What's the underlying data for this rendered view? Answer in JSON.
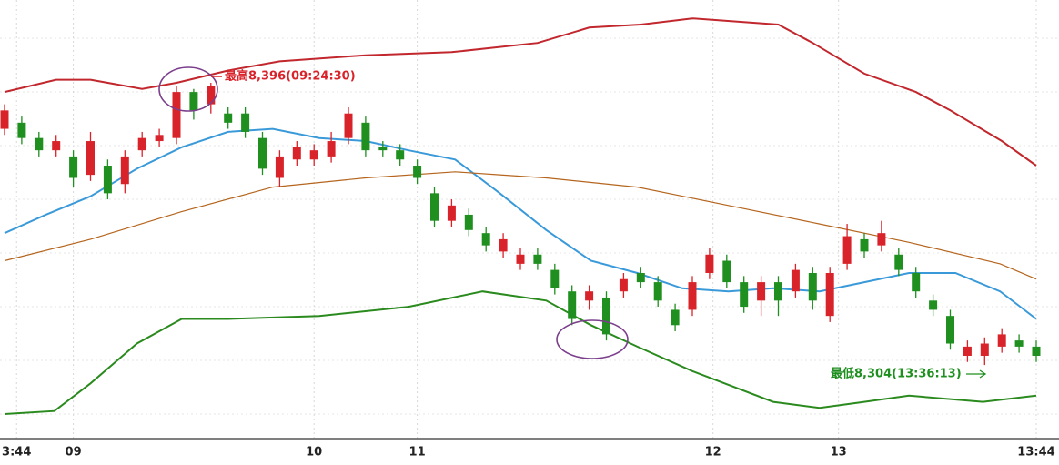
{
  "chart_data": {
    "type": "candlestick",
    "xlim": [
      0,
      60
    ],
    "ylim": [
      8280,
      8423
    ],
    "xticks": [
      {
        "value": 0.7,
        "label": "3:44"
      },
      {
        "value": 4,
        "label": "09"
      },
      {
        "value": 18,
        "label": "10"
      },
      {
        "value": 24,
        "label": "11"
      },
      {
        "value": 41.2,
        "label": "12"
      },
      {
        "value": 48.5,
        "label": "13"
      },
      {
        "value": 60,
        "label": "13:44"
      }
    ],
    "grid": true,
    "up_color": "#d9232a",
    "down_color": "#1f8f1f",
    "open": [
      8381,
      8383,
      8378,
      8374,
      8372,
      8366,
      8369,
      8363,
      8374,
      8377,
      8378,
      8393,
      8389,
      8386,
      8386,
      8378,
      8365,
      8371,
      8371,
      8372,
      8378,
      8383,
      8375,
      8374,
      8369,
      8360,
      8351,
      8353,
      8347,
      8341,
      8337,
      8340,
      8335,
      8328,
      8325,
      8326,
      8328,
      8334,
      8331,
      8322,
      8322,
      8334,
      8338,
      8331,
      8325,
      8331,
      8328,
      8334,
      8320,
      8337,
      8345,
      8343,
      8340,
      8334,
      8325,
      8320,
      8307,
      8307,
      8310,
      8312,
      8310
    ],
    "high": [
      8389,
      8385,
      8380,
      8379,
      8374,
      8380,
      8371,
      8374,
      8380,
      8381,
      8395,
      8394,
      8396,
      8388,
      8388,
      8380,
      8374,
      8377,
      8376,
      8380,
      8388,
      8385,
      8377,
      8376,
      8371,
      8362,
      8358,
      8355,
      8349,
      8347,
      8342,
      8342,
      8337,
      8330,
      8330,
      8328,
      8334,
      8336,
      8333,
      8324,
      8333,
      8342,
      8340,
      8333,
      8333,
      8333,
      8337,
      8336,
      8336,
      8350,
      8347,
      8351,
      8342,
      8336,
      8327,
      8322,
      8312,
      8313,
      8316,
      8314,
      8312
    ],
    "low": [
      8379,
      8376,
      8372,
      8372,
      8362,
      8364,
      8358,
      8360,
      8372,
      8375,
      8376,
      8384,
      8386,
      8381,
      8378,
      8366,
      8362,
      8369,
      8369,
      8370,
      8376,
      8372,
      8372,
      8369,
      8363,
      8349,
      8349,
      8346,
      8341,
      8339,
      8335,
      8335,
      8327,
      8317,
      8322,
      8312,
      8326,
      8329,
      8323,
      8315,
      8320,
      8332,
      8329,
      8321,
      8320,
      8320,
      8326,
      8322,
      8318,
      8335,
      8339,
      8341,
      8333,
      8326,
      8320,
      8309,
      8305,
      8304,
      8308,
      8308,
      8305
    ],
    "close": [
      8387,
      8378,
      8374,
      8377,
      8365,
      8377,
      8360,
      8372,
      8378,
      8379,
      8393,
      8387,
      8395,
      8383,
      8380,
      8368,
      8372,
      8375,
      8374,
      8377,
      8386,
      8374,
      8374,
      8371,
      8365,
      8351,
      8356,
      8348,
      8343,
      8345,
      8340,
      8337,
      8329,
      8319,
      8328,
      8314,
      8332,
      8331,
      8325,
      8317,
      8331,
      8340,
      8331,
      8323,
      8331,
      8325,
      8335,
      8325,
      8334,
      8346,
      8341,
      8347,
      8335,
      8328,
      8322,
      8311,
      8310,
      8311,
      8314,
      8310,
      8307
    ],
    "series": [
      {
        "color": "#c1272d",
        "x": [
          0,
          3,
          5,
          8,
          10,
          13,
          16,
          21,
          26,
          31,
          34,
          37,
          40,
          45,
          47,
          50,
          53,
          55,
          58,
          60
        ],
        "values": [
          8393,
          8397,
          8397,
          8394,
          8396,
          8400,
          8403,
          8405,
          8406,
          8409,
          8414,
          8415,
          8417,
          8415,
          8409,
          8399,
          8393,
          8387,
          8377,
          8369
        ]
      },
      {
        "color": "#3a9ad9",
        "x": [
          0,
          2.4,
          5,
          7.7,
          10.3,
          13,
          15.6,
          18.3,
          21,
          23.5,
          26.2,
          28.8,
          31.5,
          34.1,
          36.8,
          39.4,
          42.1,
          44.7,
          47.4,
          50,
          52.6,
          55.3,
          57.9,
          60
        ],
        "values": [
          8347,
          8353,
          8359,
          8368,
          8375,
          8380,
          8381,
          8378,
          8377,
          8374,
          8371,
          8360,
          8348,
          8338,
          8334,
          8329,
          8328,
          8329,
          8328,
          8331,
          8334,
          8334,
          8328,
          8319
        ]
      },
      {
        "color": "#b5651d",
        "x": [
          0,
          5,
          10.3,
          15.6,
          21,
          26.2,
          28.8,
          31.5,
          36.8,
          42.1,
          47.4,
          52.6,
          57.9,
          60
        ],
        "values": [
          8338,
          8345,
          8354,
          8362,
          8365,
          8367,
          8366,
          8365,
          8362,
          8356,
          8350,
          8344,
          8337,
          8332
        ]
      },
      {
        "color": "#2a8a1e",
        "x": [
          0,
          2.9,
          5,
          7.7,
          10.3,
          13,
          18.3,
          23.5,
          27.8,
          31.5,
          34.1,
          36.8,
          40,
          44.7,
          47.4,
          50,
          52.6,
          56.9,
          60
        ],
        "values": [
          8288,
          8289,
          8298,
          8311,
          8319,
          8319,
          8320,
          8323,
          8328,
          8325,
          8317,
          8310,
          8302,
          8292,
          8290,
          8292,
          8294,
          8292,
          8294
        ]
      }
    ],
    "annotations": [
      {
        "text": "最高8,396(09:24:30)",
        "color": "#d9232a"
      },
      {
        "text": "最低8,304(13:36:13)",
        "color": "#1f8f1f"
      }
    ]
  }
}
